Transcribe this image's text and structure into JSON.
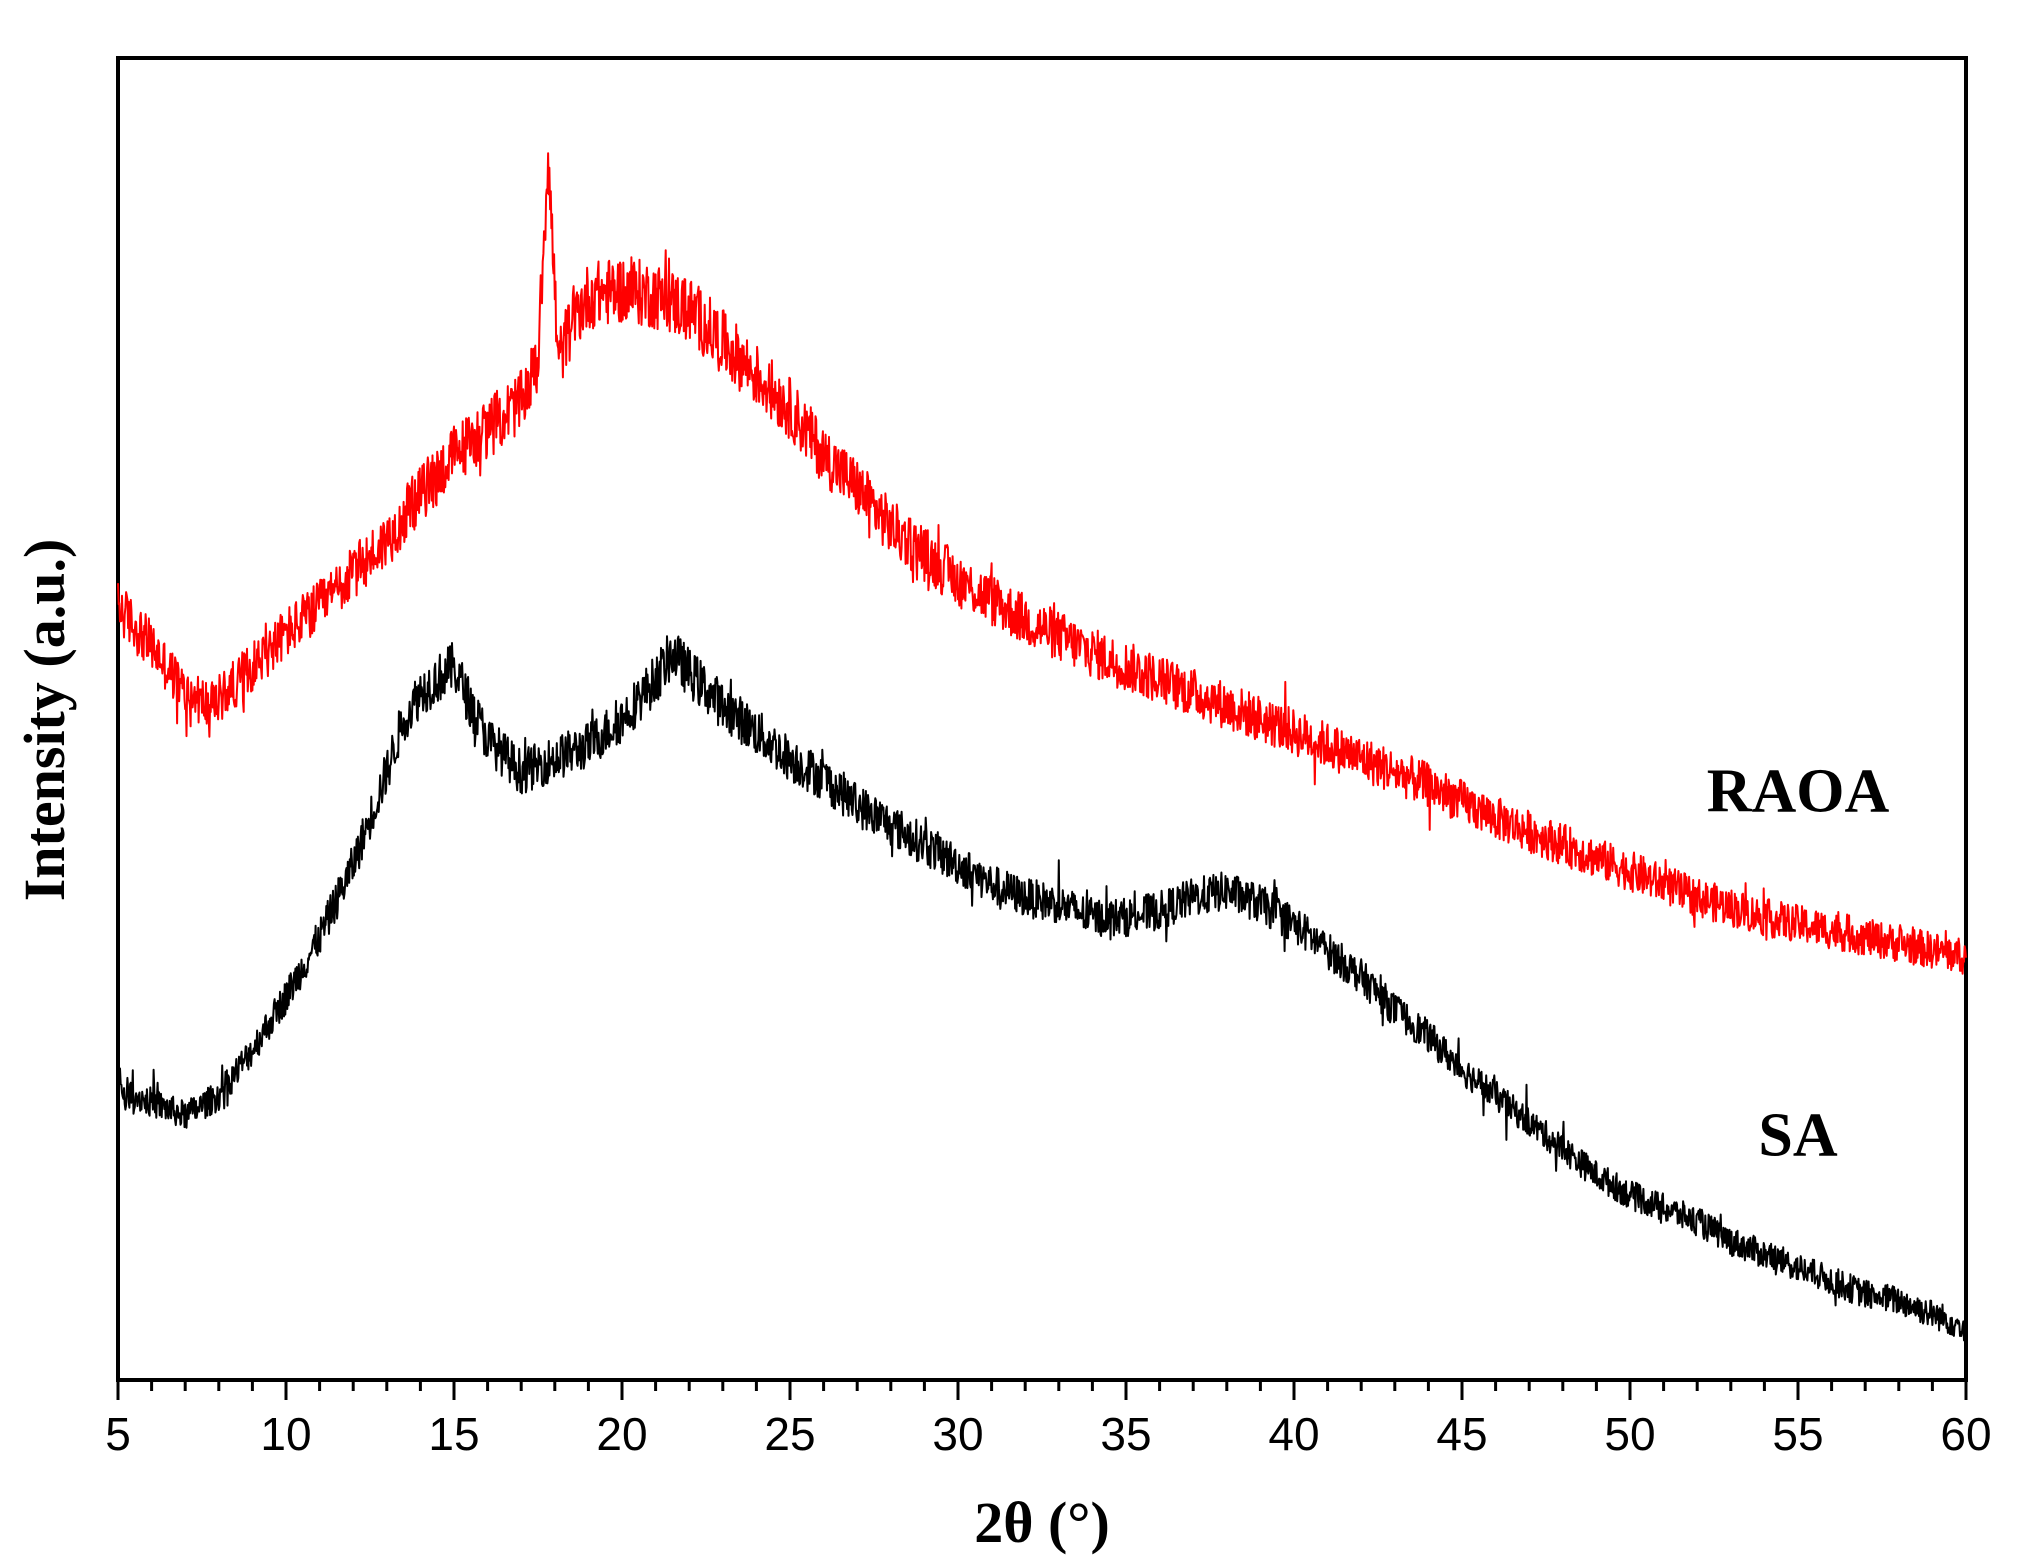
{
  "chart_data": {
    "type": "line",
    "title": "",
    "xlabel": "2θ (°)",
    "ylabel": "Intensity (a.u.)",
    "xlim": [
      5,
      60
    ],
    "ylim": [
      0,
      100
    ],
    "x_ticks": [
      5,
      10,
      15,
      20,
      25,
      30,
      35,
      40,
      45,
      50,
      55,
      60
    ],
    "x_minor_step": 1,
    "y_ticks_shown": false,
    "grid": false,
    "legend": "none (series labelled directly on plot)",
    "series": [
      {
        "name": "RAOA",
        "color": "#ff0000",
        "label_at": [
          55,
          43
        ],
        "x": [
          5,
          6,
          7,
          7.8,
          9,
          10,
          11,
          12,
          13,
          14,
          15,
          16,
          17,
          17.5,
          17.8,
          18.1,
          18.5,
          19,
          20,
          21,
          22,
          23,
          24,
          25,
          26,
          27,
          28,
          30,
          32,
          34,
          36,
          38,
          40,
          42,
          44,
          46,
          48,
          50,
          52,
          54,
          56,
          58,
          60
        ],
        "y": [
          58.5,
          55.5,
          52,
          51,
          54,
          56.5,
          58.5,
          61,
          63.5,
          67,
          70,
          72,
          74,
          77,
          93,
          77,
          80,
          82,
          82.5,
          82,
          81,
          78.5,
          76,
          73.5,
          70,
          67.5,
          64.5,
          60.5,
          57.5,
          55,
          53,
          51,
          49,
          47,
          45,
          42.5,
          40.5,
          38.5,
          36.5,
          35,
          34,
          33,
          32
        ]
      },
      {
        "name": "SA",
        "color": "#000000",
        "label_at": [
          55,
          17
        ],
        "x": [
          5,
          6,
          7,
          8,
          9,
          10,
          11,
          12,
          13,
          13.5,
          14,
          14.5,
          15,
          15.5,
          16,
          17,
          18,
          19,
          20,
          21,
          21.5,
          22,
          23,
          24,
          25,
          26,
          27,
          28,
          29,
          30,
          31,
          32,
          33,
          34,
          35,
          36,
          37,
          38,
          39,
          40,
          41,
          42,
          43,
          44,
          45,
          46,
          47,
          48,
          49,
          50,
          51,
          52,
          53,
          54,
          55,
          56,
          57,
          58,
          59,
          60
        ],
        "y": [
          22,
          21,
          20,
          21.5,
          25,
          29,
          33.5,
          39,
          46,
          50,
          52,
          53,
          54,
          51,
          48.5,
          46,
          47,
          48,
          50,
          53,
          55,
          53.5,
          51,
          49,
          47,
          45.5,
          43.5,
          42,
          40.5,
          39,
          37.5,
          36.5,
          36,
          35,
          35,
          35.5,
          36.5,
          37,
          36,
          34.5,
          32.5,
          30.5,
          28,
          26,
          23.5,
          21.5,
          19.5,
          17.5,
          15.5,
          14,
          13,
          12,
          10.5,
          9.5,
          8.5,
          7.5,
          6.5,
          6,
          5,
          4
        ]
      }
    ]
  }
}
